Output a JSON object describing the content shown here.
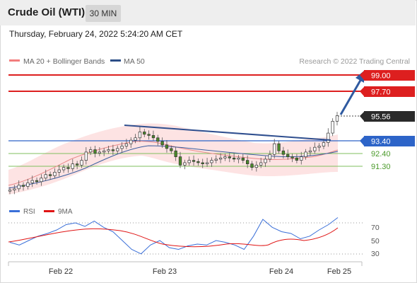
{
  "header": {
    "title": "Crude Oil (WTI)",
    "timeframe": "30 MIN"
  },
  "datetime": "Thursday, February 24, 2022 5:24:20 AM CET",
  "legend": {
    "bollinger": "MA 20 + Bollinger Bands",
    "ma50": "MA 50"
  },
  "credit": "Research © 2022 Trading Central",
  "levels": [
    {
      "value": "99.00",
      "type": "resistance"
    },
    {
      "value": "97.70",
      "type": "resistance"
    },
    {
      "value": "95.56",
      "type": "last-price"
    },
    {
      "value": "93.40",
      "type": "pivot"
    },
    {
      "value": "92.40",
      "type": "support"
    },
    {
      "value": "91.30",
      "type": "support"
    }
  ],
  "rsi_legend": {
    "rsi": "RSI",
    "ma": "9MA"
  },
  "rsi_ticks": [
    "70",
    "50",
    "30"
  ],
  "xaxis": [
    "Feb 22",
    "Feb 23",
    "Feb 24",
    "Feb 25"
  ],
  "colors": {
    "resistance": "#dd1f1f",
    "pivot": "#2d64c8",
    "support": "#4a9a2a",
    "last": "#2a2a2a",
    "trend": "#2f4f8f"
  },
  "chart_data": {
    "type": "candlestick",
    "price_ticks": [
      91.3,
      92.4,
      93.4,
      95.56,
      97.7,
      99.0
    ],
    "approx_closes": [
      89.3,
      89.4,
      89.7,
      89.6,
      89.9,
      90.1,
      90.0,
      90.3,
      90.6,
      90.5,
      90.8,
      91.0,
      91.2,
      91.1,
      91.5,
      91.4,
      91.8,
      92.5,
      92.7,
      92.4,
      92.5,
      92.6,
      92.7,
      92.6,
      92.8,
      93.0,
      93.2,
      93.5,
      93.7,
      94.2,
      94.0,
      93.9,
      93.7,
      93.4,
      93.1,
      92.8,
      92.6,
      92.1,
      91.4,
      91.6,
      91.8,
      91.7,
      91.6,
      91.5,
      91.6,
      91.8,
      91.9,
      92.0,
      92.1,
      92.0,
      91.9,
      92.0,
      91.8,
      91.5,
      91.2,
      91.4,
      91.6,
      91.9,
      92.3,
      93.2,
      92.6,
      92.3,
      92.1,
      92.0,
      91.8,
      92.1,
      92.5,
      92.6,
      92.9,
      93.0,
      93.3,
      94.1,
      95.1,
      95.56
    ],
    "rsi": [
      48,
      45,
      50,
      55,
      58,
      62,
      68,
      70,
      66,
      72,
      65,
      60,
      50,
      40,
      35,
      45,
      50,
      42,
      40,
      44,
      46,
      45,
      50,
      48,
      45,
      40,
      55,
      74,
      65,
      60,
      58,
      52,
      55,
      62,
      68,
      76
    ]
  }
}
